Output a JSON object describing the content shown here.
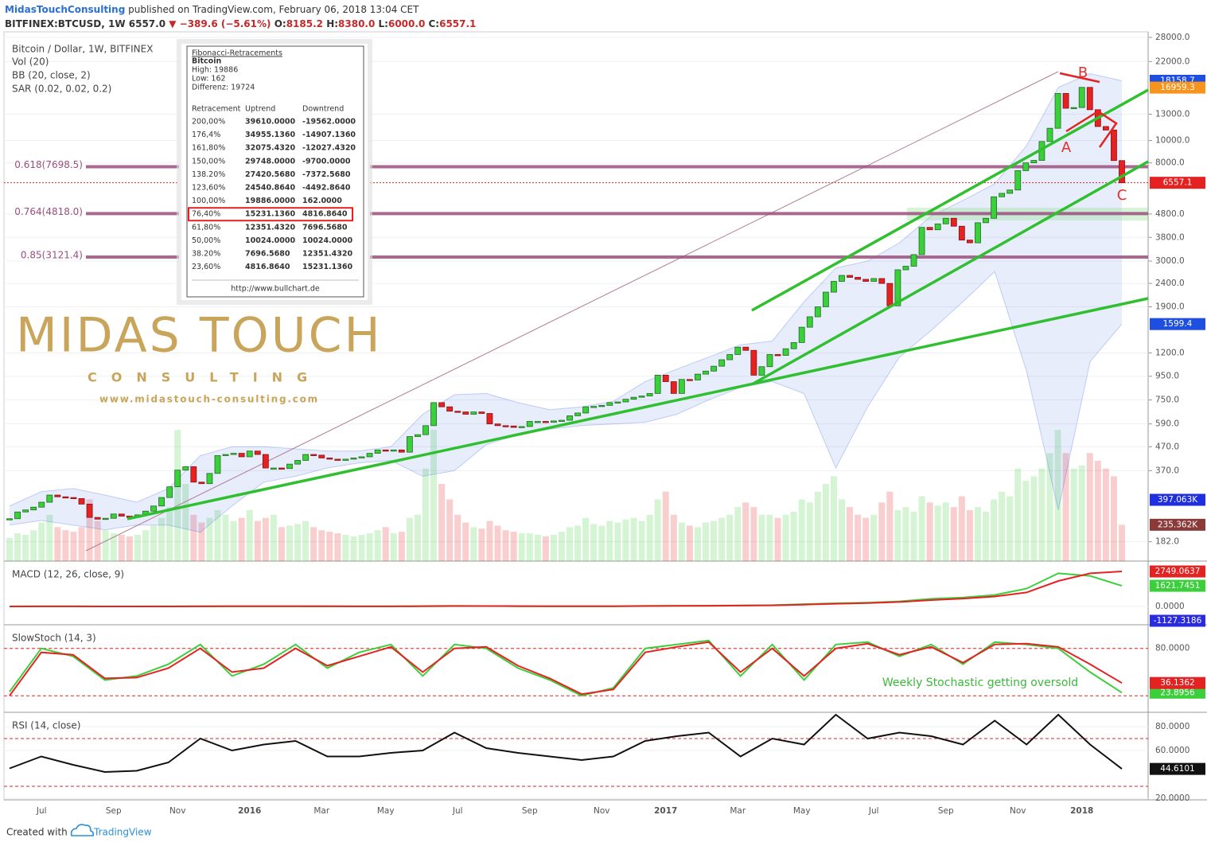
{
  "header": {
    "author": "MidasTouchConsulting",
    "published": " published on TradingView.com, February 06, 2018 13:04 CET",
    "symbol": "BITFINEX:BTCUSD, 1W",
    "price": "6557.0",
    "change": "▼ −389.6 (−5.61%)",
    "ohlc": [
      {
        "label": "O:",
        "value": "8185.2"
      },
      {
        "label": "H:",
        "value": "8380.0"
      },
      {
        "label": "L:",
        "value": "6000.0"
      },
      {
        "label": "C:",
        "value": "6557.1"
      }
    ]
  },
  "logo": {
    "name": "MIDAS TOUCH",
    "tagline": "CONSULTING",
    "url": "www.midastouch-consulting.com"
  },
  "fib_box": {
    "title": "Fibonacci-Retracements",
    "name": "Bitcoin",
    "high": "High: 19886",
    "low": "Low: 162",
    "diff": "Differenz: 19724",
    "columns": [
      "Retracement",
      "Uptrend",
      "Downtrend"
    ],
    "rows": [
      [
        "200,00%",
        "39610.0000",
        "-19562.0000"
      ],
      [
        "176,4%",
        "34955.1360",
        "-14907.1360"
      ],
      [
        "161,80%",
        "32075.4320",
        "-12027.4320"
      ],
      [
        "150,00%",
        "29748.0000",
        "-9700.0000"
      ],
      [
        "138.20%",
        "27420.5680",
        "-7372.5680"
      ],
      [
        "123,60%",
        "24540.8640",
        "-4492.8640"
      ],
      [
        "100,00%",
        "19886.0000",
        "162.0000"
      ],
      [
        "76,40%",
        "15231.1360",
        "4816.8640"
      ],
      [
        "61,80%",
        "12351.4320",
        "7696.5680"
      ],
      [
        "50,00%",
        "10024.0000",
        "10024.0000"
      ],
      [
        "38.20%",
        "7696.5680",
        "12351.4320"
      ],
      [
        "23,60%",
        "4816.8640",
        "15231.1360"
      ]
    ],
    "highlight": 7,
    "url": "http://www.bullchart.de"
  },
  "footer": {
    "created": "Created with",
    "brand": "TradingView"
  },
  "chart_data": [
    {
      "type": "candlestick",
      "title": "Bitcoin / Dollar, 1W, BITFINEX",
      "categories": [
        null,
        null,
        null,
        null,
        "Jul",
        null,
        null,
        null,
        null,
        null,
        null,
        null,
        null,
        "Sep",
        null,
        null,
        null,
        null,
        null,
        null,
        null,
        "Nov",
        null,
        null,
        null,
        null,
        null,
        null,
        null,
        null,
        "2016",
        null,
        null,
        null,
        null,
        null,
        null,
        null,
        null,
        "Mar",
        null,
        null,
        null,
        null,
        null,
        null,
        null,
        "May",
        null,
        null,
        null,
        null,
        null,
        null,
        null,
        null,
        "Jul",
        null,
        null,
        null,
        null,
        null,
        null,
        null,
        null,
        "Sep",
        null,
        null,
        null,
        null,
        null,
        null,
        null,
        null,
        "Nov",
        null,
        null,
        null,
        null,
        null,
        null,
        null,
        "2017",
        null,
        null,
        null,
        null,
        null,
        null,
        null,
        null,
        "Mar",
        null,
        null,
        null,
        null,
        null,
        null,
        null,
        "May",
        null,
        null,
        null,
        null,
        null,
        null,
        null,
        null,
        "Jul",
        null,
        null,
        null,
        null,
        null,
        null,
        null,
        null,
        "Sep",
        null,
        null,
        null,
        null,
        null,
        null,
        null,
        null,
        "Nov",
        null,
        null,
        null,
        null,
        null,
        null,
        null,
        "2018",
        null,
        null,
        null,
        null,
        null
      ],
      "values": [
        229,
        245,
        250,
        257,
        270,
        290,
        285,
        283,
        280,
        265,
        232,
        228,
        230,
        240,
        235,
        232,
        238,
        247,
        260,
        283,
        315,
        372,
        385,
        330,
        325,
        360,
        430,
        435,
        440,
        425,
        450,
        435,
        380,
        380,
        378,
        395,
        410,
        435,
        432,
        420,
        415,
        410,
        415,
        420,
        425,
        440,
        455,
        450,
        455,
        445,
        520,
        530,
        580,
        730,
        700,
        670,
        665,
        650,
        665,
        655,
        590,
        580,
        578,
        570,
        575,
        605,
        605,
        600,
        608,
        612,
        640,
        658,
        700,
        703,
        710,
        730,
        735,
        755,
        770,
        780,
        800,
        960,
        900,
        800,
        920,
        915,
        970,
        1000,
        1050,
        1120,
        1180,
        1270,
        1230,
        960,
        1045,
        1180,
        1170,
        1250,
        1330,
        1550,
        1720,
        1900,
        2200,
        2450,
        2600,
        2550,
        2500,
        2450,
        2520,
        2400,
        1920,
        2750,
        2850,
        3200,
        4200,
        4100,
        4350,
        4600,
        4250,
        3700,
        3600,
        4400,
        4600,
        5700,
        5900,
        6100,
        7400,
        8000,
        8200,
        9900,
        11300,
        16000,
        13800,
        13900,
        17000,
        13600,
        11500,
        11100,
        8185,
        6557.1
      ],
      "up_color": "#3ccf3c",
      "down_color": "#e52222",
      "ylim": [
        150,
        29600
      ],
      "log_scale": true,
      "yticks": [
        {
          "value": 28000,
          "label": "28000.0"
        },
        {
          "value": 22000,
          "label": "22000.0"
        },
        {
          "value": 13000,
          "label": "13000.0"
        },
        {
          "value": 10000,
          "label": "10000.0"
        },
        {
          "value": 8000,
          "label": "8000.0"
        },
        {
          "value": 4800,
          "label": "4800.0"
        },
        {
          "value": 3800,
          "label": "3800.0"
        },
        {
          "value": 3000,
          "label": "3000.0"
        },
        {
          "value": 2400,
          "label": "2400.0"
        },
        {
          "value": 1900,
          "label": "1900.0"
        },
        {
          "value": 1200,
          "label": "1200.0"
        },
        {
          "value": 950,
          "label": "950.0"
        },
        {
          "value": 750,
          "label": "750.0"
        },
        {
          "value": 590,
          "label": "590.0"
        },
        {
          "value": 470,
          "label": "470.0"
        },
        {
          "value": 370,
          "label": "370.0"
        },
        {
          "value": 182,
          "label": "182.0"
        }
      ],
      "volume": {
        "name": "Vol (20)",
        "ylim": [
          0,
          3430
        ],
        "label_color": "#8b3a3a",
        "values": [
          150,
          180,
          170,
          200,
          250,
          300,
          220,
          200,
          190,
          220,
          400,
          260,
          200,
          180,
          170,
          160,
          170,
          200,
          230,
          280,
          350,
          850,
          500,
          300,
          250,
          280,
          330,
          300,
          260,
          280,
          330,
          260,
          280,
          300,
          220,
          230,
          240,
          260,
          220,
          200,
          190,
          180,
          170,
          160,
          170,
          180,
          200,
          220,
          180,
          190,
          280,
          300,
          600,
          850,
          500,
          400,
          300,
          250,
          220,
          210,
          260,
          230,
          200,
          190,
          180,
          180,
          170,
          160,
          170,
          190,
          220,
          230,
          280,
          240,
          230,
          260,
          250,
          270,
          280,
          260,
          300,
          400,
          450,
          300,
          250,
          230,
          220,
          250,
          260,
          280,
          300,
          350,
          380,
          350,
          300,
          300,
          280,
          300,
          320,
          400,
          380,
          450,
          500,
          550,
          400,
          350,
          300,
          280,
          300,
          380,
          450,
          330,
          350,
          320,
          420,
          380,
          360,
          380,
          350,
          420,
          330,
          350,
          320,
          400,
          450,
          420,
          600,
          520,
          550,
          600,
          700,
          850,
          700,
          600,
          620,
          700,
          650,
          600,
          550,
          235.362
        ],
        "value_labels": [
          null,
          null,
          null,
          null,
          null,
          null,
          null,
          null,
          null,
          null,
          null,
          null,
          null,
          null,
          null,
          null,
          null,
          null,
          null,
          null,
          null,
          null,
          null,
          null,
          null,
          null,
          null,
          null,
          null,
          null,
          null,
          null,
          null,
          null,
          null,
          null,
          null,
          null,
          null,
          null,
          null,
          null,
          null,
          null,
          null,
          null,
          null,
          null,
          null,
          null,
          null,
          null,
          null,
          null,
          null,
          null,
          null,
          null,
          null,
          null,
          null,
          null,
          null,
          null,
          null,
          null,
          null,
          null,
          null,
          null,
          null,
          null,
          null,
          null,
          null,
          null,
          null,
          null,
          null,
          null,
          null,
          null,
          null,
          null,
          null,
          null,
          null,
          null,
          null,
          null,
          null,
          null,
          null,
          null,
          null,
          null,
          null,
          null,
          null,
          null,
          null,
          null,
          null,
          null,
          null,
          null,
          null,
          null,
          null,
          null,
          null,
          null,
          null,
          null,
          null,
          null,
          null,
          null,
          null,
          null,
          null,
          null,
          null,
          null,
          null,
          null,
          null,
          null,
          null,
          null,
          null,
          null,
          null,
          null,
          null,
          null,
          null,
          null,
          null,
          "235.362K"
        ],
        "ma": {
          "value": 397.063,
          "label": "397.063K",
          "color": "#1f2fe0"
        }
      },
      "bollinger": {
        "name": "BB (20, close, 2)",
        "color": "#1e4fe0",
        "upper": [
          260,
          300,
          310,
          290,
          270,
          310,
          430,
          470,
          470,
          460,
          450,
          450,
          470,
          650,
          790,
          800,
          730,
          680,
          700,
          740,
          900,
          1020,
          1150,
          1300,
          1350,
          2000,
          2800,
          3000,
          3600,
          4700,
          5500,
          6500,
          9500,
          17000,
          19500,
          18158.7
        ],
        "lower": [
          215,
          225,
          215,
          205,
          215,
          215,
          200,
          260,
          330,
          350,
          380,
          400,
          410,
          350,
          370,
          480,
          530,
          560,
          580,
          590,
          600,
          650,
          750,
          850,
          900,
          800,
          380,
          700,
          1150,
          1500,
          2000,
          2700,
          1000,
          250,
          1100,
          1599.4
        ]
      },
      "sar": {
        "name": "SAR (0.02, 0.02, 0.2)",
        "value": 16959.3,
        "color": "#f7941d"
      },
      "fib_levels": [
        {
          "value": 7698.5,
          "label": "0.618(7698.5)"
        },
        {
          "value": 4818.0,
          "label": "0.764(4818.0)"
        },
        {
          "value": 3121.4,
          "label": "0.85(3121.4)"
        }
      ],
      "fib_color": "#9c4f7e",
      "annotations": [
        "A",
        "B",
        "C"
      ]
    },
    {
      "type": "line",
      "title": "MACD (12, 26, close, 9)",
      "ylim": [
        -1440,
        3440
      ],
      "yticks": [
        {
          "value": 0,
          "label": "0.0000"
        }
      ],
      "series": [
        {
          "color": "#3ccf3c",
          "values": [
            0,
            5,
            3,
            -2,
            -3,
            5,
            15,
            20,
            15,
            10,
            8,
            5,
            8,
            30,
            40,
            30,
            15,
            10,
            12,
            20,
            40,
            50,
            60,
            80,
            100,
            180,
            250,
            300,
            400,
            600,
            700,
            900,
            1400,
            2600,
            2400,
            1621.7451
          ]
        },
        {
          "color": "#e52222",
          "values": [
            0,
            3,
            4,
            1,
            -1,
            2,
            8,
            14,
            16,
            12,
            9,
            7,
            7,
            18,
            30,
            32,
            22,
            14,
            12,
            16,
            30,
            42,
            52,
            68,
            88,
            140,
            210,
            270,
            350,
            500,
            620,
            780,
            1100,
            2000,
            2600,
            2749.0637
          ]
        }
      ],
      "histogram_label": {
        "value": -1127.3186,
        "color": "#2a2ae0"
      }
    },
    {
      "type": "line",
      "title": "SlowStoch (14, 3)",
      "ylim": [
        -1,
        108
      ],
      "yticks": [
        {
          "value": 80,
          "label": "80.0000"
        }
      ],
      "levels": [
        20,
        80
      ],
      "annotation": "Weekly Stochastic getting oversold",
      "series": [
        {
          "color": "#3ccf3c",
          "values": [
            25,
            80,
            70,
            40,
            45,
            60,
            85,
            45,
            60,
            85,
            55,
            75,
            85,
            45,
            85,
            80,
            55,
            40,
            20,
            30,
            80,
            85,
            90,
            45,
            85,
            40,
            85,
            88,
            70,
            85,
            60,
            88,
            85,
            80,
            50,
            23.8956
          ]
        },
        {
          "color": "#e52222",
          "values": [
            20,
            75,
            72,
            42,
            43,
            55,
            80,
            50,
            55,
            80,
            58,
            70,
            82,
            50,
            80,
            82,
            58,
            42,
            22,
            28,
            75,
            82,
            88,
            50,
            80,
            45,
            80,
            86,
            72,
            82,
            62,
            85,
            86,
            82,
            60,
            36.1362
          ]
        }
      ]
    },
    {
      "type": "line",
      "title": "RSI (14, close)",
      "ylim": [
        18.7,
        90.7
      ],
      "yticks": [
        {
          "value": 80,
          "label": "80.0000"
        },
        {
          "value": 60,
          "label": "60.0000"
        },
        {
          "value": 20,
          "label": "20.0000"
        }
      ],
      "levels": [
        30,
        70
      ],
      "series": [
        {
          "color": "#111111",
          "values": [
            45,
            55,
            48,
            42,
            43,
            50,
            70,
            60,
            65,
            68,
            55,
            55,
            58,
            60,
            75,
            62,
            58,
            55,
            52,
            55,
            68,
            72,
            75,
            55,
            70,
            65,
            90,
            70,
            75,
            72,
            65,
            85,
            65,
            90,
            65,
            44.6101
          ]
        }
      ]
    }
  ]
}
